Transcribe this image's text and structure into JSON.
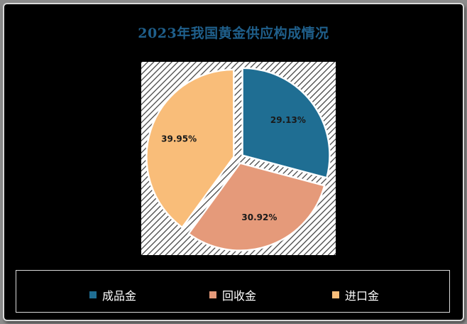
{
  "chart_data": {
    "type": "pie",
    "title": "2023年我国黄金供应构成情况",
    "slices": [
      {
        "label": "成品金",
        "value": 29.13,
        "value_label": "29.13%",
        "color": "#1f6e93"
      },
      {
        "label": "回收金",
        "value": 30.92,
        "value_label": "30.92%",
        "color": "#e59a7a"
      },
      {
        "label": "进口金",
        "value": 39.95,
        "value_label": "39.95%",
        "color": "#f9bd79"
      }
    ],
    "legend_position": "bottom",
    "exploded": true
  }
}
